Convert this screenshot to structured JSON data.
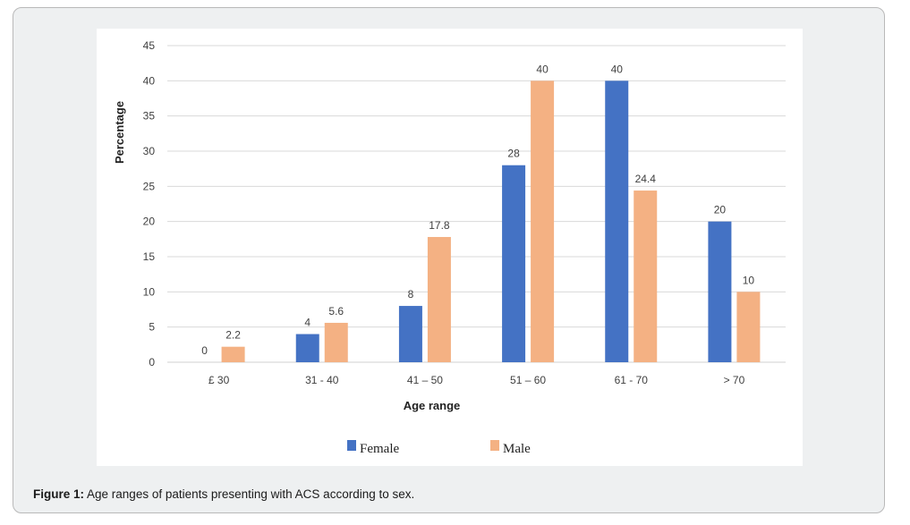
{
  "figure": {
    "caption_label": "Figure 1:",
    "caption_text": " Age ranges of patients presenting with ACS according to sex."
  },
  "colors": {
    "female": "#4472c4",
    "male": "#f4b183",
    "grid": "#d9d9d9",
    "text": "#404040"
  },
  "chart_data": {
    "type": "bar",
    "title": "",
    "xlabel": "Age range",
    "ylabel": "Percentage",
    "ylim": [
      0,
      45
    ],
    "yticks": [
      0,
      5,
      10,
      15,
      20,
      25,
      30,
      35,
      40,
      45
    ],
    "grid": true,
    "legend_position": "bottom",
    "categories": [
      "£ 30",
      "31 - 40",
      "41 – 50",
      "51 – 60",
      "61 - 70",
      "> 70"
    ],
    "series": [
      {
        "name": "Female",
        "values": [
          0,
          4,
          8,
          28,
          40,
          20
        ],
        "labels": [
          "0",
          "4",
          "8",
          "28",
          "40",
          "20"
        ]
      },
      {
        "name": "Male",
        "values": [
          2.2,
          5.6,
          17.8,
          40,
          24.4,
          10
        ],
        "labels": [
          "2.2",
          "5.6",
          "17.8",
          "40",
          "24.4",
          "10"
        ]
      }
    ]
  }
}
